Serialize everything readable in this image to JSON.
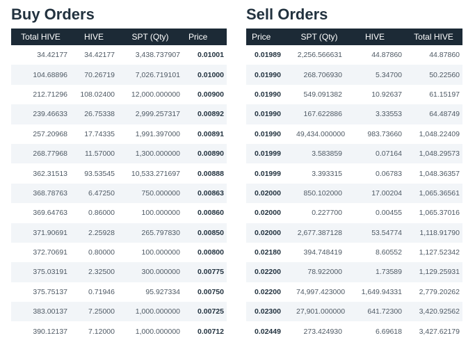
{
  "buy": {
    "title": "Buy Orders",
    "columns": [
      "Total HIVE",
      "HIVE",
      "SPT (Qty)",
      "Price"
    ],
    "rows": [
      [
        "34.42177",
        "34.42177",
        "3,438.737907",
        "0.01001"
      ],
      [
        "104.68896",
        "70.26719",
        "7,026.719101",
        "0.01000"
      ],
      [
        "212.71296",
        "108.02400",
        "12,000.000000",
        "0.00900"
      ],
      [
        "239.46633",
        "26.75338",
        "2,999.257317",
        "0.00892"
      ],
      [
        "257.20968",
        "17.74335",
        "1,991.397000",
        "0.00891"
      ],
      [
        "268.77968",
        "11.57000",
        "1,300.000000",
        "0.00890"
      ],
      [
        "362.31513",
        "93.53545",
        "10,533.271697",
        "0.00888"
      ],
      [
        "368.78763",
        "6.47250",
        "750.000000",
        "0.00863"
      ],
      [
        "369.64763",
        "0.86000",
        "100.000000",
        "0.00860"
      ],
      [
        "371.90691",
        "2.25928",
        "265.797830",
        "0.00850"
      ],
      [
        "372.70691",
        "0.80000",
        "100.000000",
        "0.00800"
      ],
      [
        "375.03191",
        "2.32500",
        "300.000000",
        "0.00775"
      ],
      [
        "375.75137",
        "0.71946",
        "95.927334",
        "0.00750"
      ],
      [
        "383.00137",
        "7.25000",
        "1,000.000000",
        "0.00725"
      ],
      [
        "390.12137",
        "7.12000",
        "1,000.000000",
        "0.00712"
      ]
    ]
  },
  "sell": {
    "title": "Sell Orders",
    "columns": [
      "Price",
      "SPT (Qty)",
      "HIVE",
      "Total HIVE"
    ],
    "rows": [
      [
        "0.01989",
        "2,256.566631",
        "44.87860",
        "44.87860"
      ],
      [
        "0.01990",
        "268.706930",
        "5.34700",
        "50.22560"
      ],
      [
        "0.01990",
        "549.091382",
        "10.92637",
        "61.15197"
      ],
      [
        "0.01990",
        "167.622886",
        "3.33553",
        "64.48749"
      ],
      [
        "0.01990",
        "49,434.000000",
        "983.73660",
        "1,048.22409"
      ],
      [
        "0.01999",
        "3.583859",
        "0.07164",
        "1,048.29573"
      ],
      [
        "0.01999",
        "3.393315",
        "0.06783",
        "1,048.36357"
      ],
      [
        "0.02000",
        "850.102000",
        "17.00204",
        "1,065.36561"
      ],
      [
        "0.02000",
        "0.227700",
        "0.00455",
        "1,065.37016"
      ],
      [
        "0.02000",
        "2,677.387128",
        "53.54774",
        "1,118.91790"
      ],
      [
        "0.02180",
        "394.748419",
        "8.60552",
        "1,127.52342"
      ],
      [
        "0.02200",
        "78.922000",
        "1.73589",
        "1,129.25931"
      ],
      [
        "0.02200",
        "74,997.423000",
        "1,649.94331",
        "2,779.20262"
      ],
      [
        "0.02300",
        "27,901.000000",
        "641.72300",
        "3,420.92562"
      ],
      [
        "0.02449",
        "273.424930",
        "6.69618",
        "3,427.62179"
      ]
    ]
  }
}
